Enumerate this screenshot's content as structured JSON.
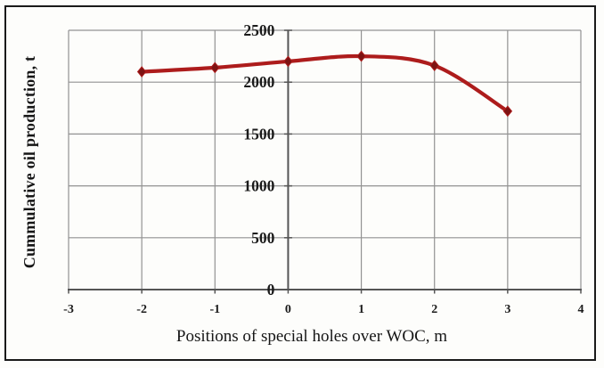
{
  "chart_data": {
    "type": "line",
    "x": [
      -2,
      -1,
      0,
      1,
      2,
      3
    ],
    "values": [
      2100,
      2140,
      2200,
      2250,
      2160,
      1720
    ],
    "title": "",
    "xlabel": "Positions of special holes over WOC, m",
    "ylabel": "Cummulative oil production, t",
    "xlim": [
      -3,
      4
    ],
    "ylim": [
      0,
      2500
    ],
    "x_ticks": [
      -3,
      -2,
      -1,
      0,
      1,
      2,
      3,
      4
    ],
    "y_ticks": [
      0,
      500,
      1000,
      1500,
      2000,
      2500
    ],
    "grid": true,
    "legend": false,
    "smoothed": true,
    "line_color": "#ad1c1c",
    "marker": "diamond",
    "marker_color": "#7d1313",
    "grid_color": "#929292",
    "axis_color": "#555555",
    "tick_label_color": "#1b1b1b"
  }
}
